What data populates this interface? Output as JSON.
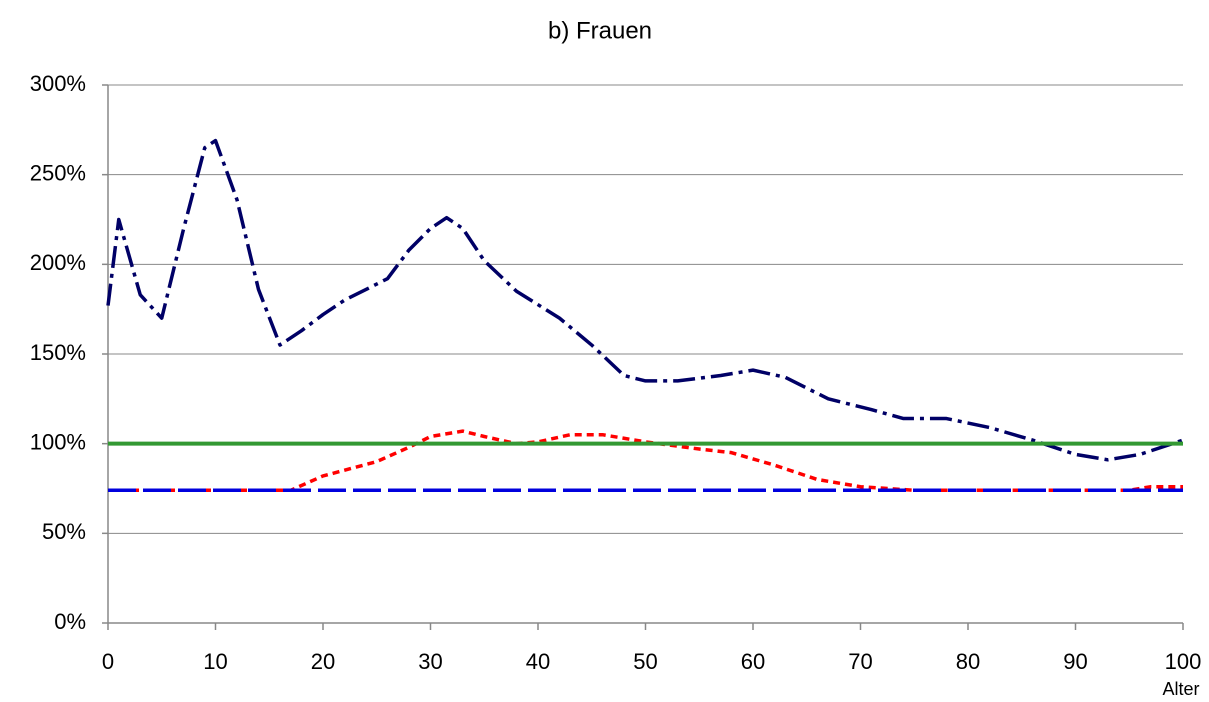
{
  "chart_data": {
    "type": "line",
    "title": "b) Frauen",
    "x_label": "Alter",
    "xlim": [
      0,
      100
    ],
    "xticks": [
      0,
      10,
      20,
      30,
      40,
      50,
      60,
      70,
      80,
      90,
      100
    ],
    "ylim": [
      0,
      300
    ],
    "yticks": [
      {
        "value": 0,
        "label": "0%"
      },
      {
        "value": 50,
        "label": "50%"
      },
      {
        "value": 100,
        "label": "100%"
      },
      {
        "value": 150,
        "label": "150%"
      },
      {
        "value": 200,
        "label": "200%"
      },
      {
        "value": 250,
        "label": "250%"
      },
      {
        "value": 300,
        "label": "300%"
      }
    ],
    "grid": true,
    "series": [
      {
        "color": "#000066",
        "x": [
          0,
          1,
          3,
          5,
          7,
          9,
          10,
          12,
          14,
          16,
          18,
          20,
          22,
          26,
          28,
          30,
          31.5,
          33,
          35,
          38,
          42,
          45,
          48,
          50,
          53,
          57,
          60,
          63,
          67,
          71,
          74,
          78,
          82,
          86,
          90,
          93,
          96,
          100
        ],
        "values": [
          177,
          225,
          183,
          170,
          219,
          265,
          269,
          236,
          186,
          155,
          163,
          172,
          180,
          192,
          208,
          220,
          226,
          220,
          202,
          185,
          170,
          155,
          138,
          135,
          135,
          138,
          141,
          137,
          125,
          119,
          114,
          114,
          109,
          102,
          94,
          91,
          94,
          102
        ]
      },
      {
        "color": "#ff0000",
        "x": [
          0,
          5,
          10,
          17,
          20,
          25,
          28,
          30,
          33,
          35,
          38,
          40,
          43,
          46,
          50,
          55,
          58,
          62,
          66,
          70,
          75,
          95,
          97,
          100
        ],
        "values": [
          74,
          74,
          74,
          74,
          82,
          90,
          98,
          104,
          107,
          104,
          100,
          101,
          105,
          105,
          101,
          97,
          95,
          88,
          80,
          76,
          74,
          74,
          76,
          76
        ]
      },
      {
        "color": "#339933",
        "x": [
          0,
          100
        ],
        "values": [
          100,
          100
        ]
      },
      {
        "color": "#0000dd",
        "x": [
          0,
          100
        ],
        "values": [
          74,
          74
        ]
      }
    ]
  }
}
